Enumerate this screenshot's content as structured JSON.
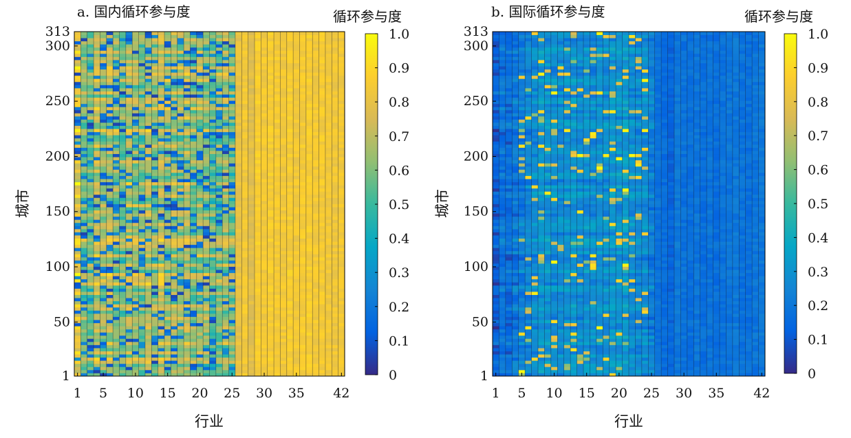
{
  "chart_data": [
    {
      "type": "heatmap",
      "title": "a. 国内循环参与度",
      "xlabel": "行业",
      "ylabel": "城市",
      "colorbar_label": "循环参与度",
      "x_range": [
        1,
        42
      ],
      "y_range": [
        1,
        313
      ],
      "x_ticks": [
        "1",
        "5",
        "10",
        "15",
        "20",
        "25",
        "30",
        "35",
        "42"
      ],
      "y_ticks": [
        "1",
        "50",
        "100",
        "150",
        "200",
        "250",
        "300",
        "313"
      ],
      "colorbar_ticks": [
        "1.0",
        "0.9",
        "0.8",
        "0.7",
        "0.6",
        "0.5",
        "0.4",
        "0.3",
        "0.2",
        "0.1",
        "0"
      ],
      "value_range": [
        0,
        1
      ],
      "colormap": "parula",
      "colormap_stops": [
        "#352a87",
        "#0363e1",
        "#1485d4",
        "#06a7c6",
        "#38b99e",
        "#92bf73",
        "#d9ba56",
        "#fcce2e",
        "#f9fb0e"
      ],
      "pattern": "high participation (mostly 0.7–0.9) overall; industries 1–25 show many low-value (0–0.3) city rows; industries 26–42 uniformly high around 0.8–0.9",
      "column_means": [
        0.82,
        0.62,
        0.58,
        0.72,
        0.66,
        0.7,
        0.64,
        0.6,
        0.68,
        0.66,
        0.62,
        0.7,
        0.64,
        0.72,
        0.66,
        0.68,
        0.66,
        0.7,
        0.62,
        0.66,
        0.64,
        0.58,
        0.62,
        0.66,
        0.6,
        0.8,
        0.84,
        0.78,
        0.86,
        0.84,
        0.86,
        0.85,
        0.84,
        0.86,
        0.84,
        0.85,
        0.86,
        0.84,
        0.85,
        0.84,
        0.83,
        0.84
      ]
    },
    {
      "type": "heatmap",
      "title": "b. 国际循环参与度",
      "xlabel": "行业",
      "ylabel": "城市",
      "colorbar_label": "循环参与度",
      "x_range": [
        1,
        42
      ],
      "y_range": [
        1,
        313
      ],
      "x_ticks": [
        "1",
        "5",
        "10",
        "15",
        "20",
        "25",
        "30",
        "35",
        "42"
      ],
      "y_ticks": [
        "1",
        "50",
        "100",
        "150",
        "200",
        "250",
        "300",
        "313"
      ],
      "colorbar_ticks": [
        "1.0",
        "0.9",
        "0.8",
        "0.7",
        "0.6",
        "0.5",
        "0.4",
        "0.3",
        "0.2",
        "0.1",
        "0"
      ],
      "value_range": [
        0,
        1
      ],
      "colormap": "parula",
      "colormap_stops": [
        "#352a87",
        "#0363e1",
        "#1485d4",
        "#06a7c6",
        "#38b99e",
        "#92bf73",
        "#d9ba56",
        "#fcce2e",
        "#f9fb0e"
      ],
      "pattern": "low participation (mostly 0.05–0.25) overall; scattered high values (0.6–1.0) in industries 5–24; industries 26–42 uniformly low around 0.15–0.25",
      "column_means": [
        0.12,
        0.18,
        0.16,
        0.2,
        0.22,
        0.24,
        0.26,
        0.3,
        0.3,
        0.28,
        0.27,
        0.28,
        0.3,
        0.27,
        0.29,
        0.27,
        0.28,
        0.28,
        0.3,
        0.3,
        0.32,
        0.28,
        0.26,
        0.27,
        0.22,
        0.18,
        0.16,
        0.14,
        0.2,
        0.18,
        0.17,
        0.19,
        0.17,
        0.18,
        0.17,
        0.18,
        0.19,
        0.2,
        0.18,
        0.17,
        0.19,
        0.2
      ]
    }
  ]
}
